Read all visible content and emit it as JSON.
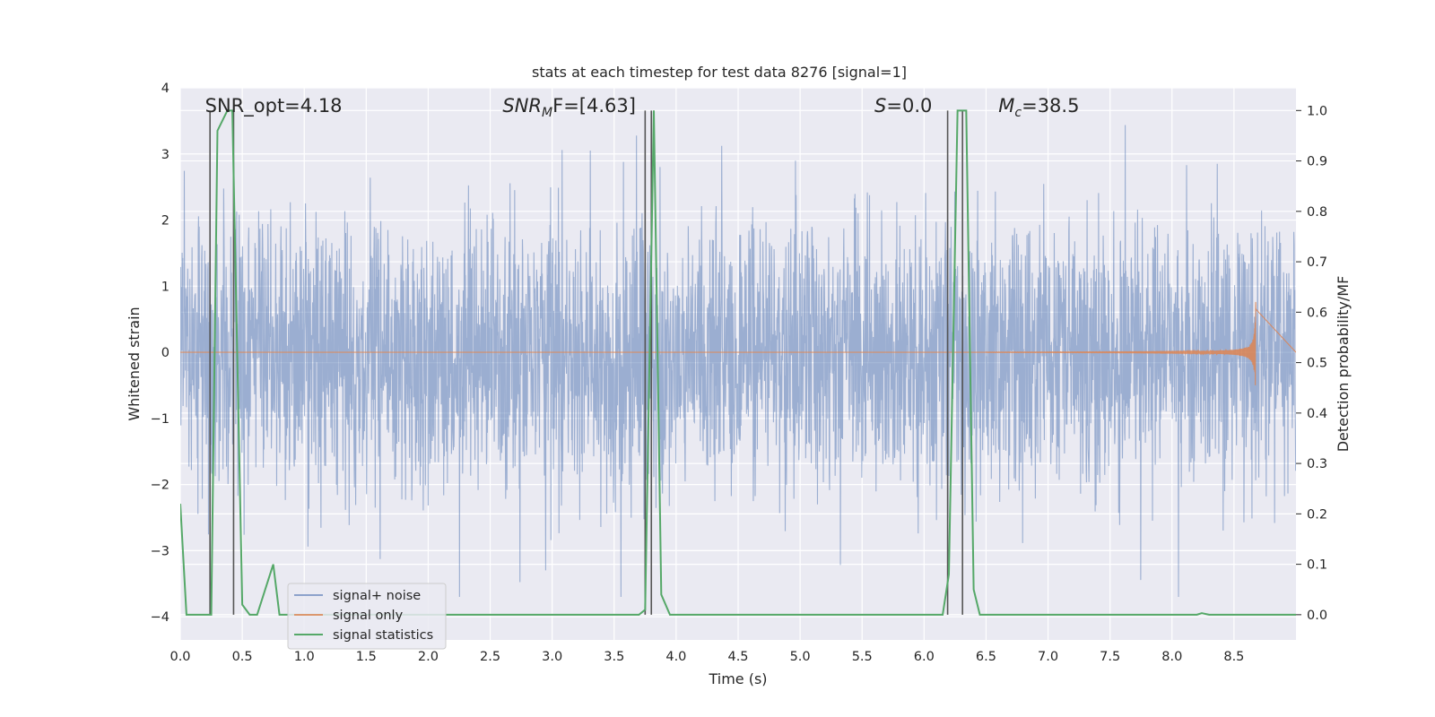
{
  "chart_data": {
    "type": "line",
    "title": "stats at each timestep for test data 8276 [signal=1]",
    "xlabel": "Time (s)",
    "ylabel": "Whitened strain",
    "y2label": "Detection probability/MF",
    "xlim": [
      0.0,
      9.0
    ],
    "ylim": [
      -4.35,
      4.0
    ],
    "y2lim": [
      -0.05,
      1.045
    ],
    "x_ticks": [
      "0.0",
      "0.5",
      "1.0",
      "1.5",
      "2.0",
      "2.5",
      "3.0",
      "3.5",
      "4.0",
      "4.5",
      "5.0",
      "5.5",
      "6.0",
      "6.5",
      "7.0",
      "7.5",
      "8.0",
      "8.5"
    ],
    "y_ticks": [
      "−4",
      "−3",
      "−2",
      "−1",
      "0",
      "1",
      "2",
      "3",
      "4"
    ],
    "y2_ticks": [
      "0.0",
      "0.1",
      "0.2",
      "0.3",
      "0.4",
      "0.5",
      "0.6",
      "0.7",
      "0.8",
      "0.9",
      "1.0"
    ],
    "grid": true,
    "legend_position": "lower-left",
    "annotations": [
      {
        "label": "SNR_opt=4.18",
        "x": 0.2
      },
      {
        "label": "SNR",
        "sub": "M",
        "rest": "F=[4.63]",
        "x": 2.6
      },
      {
        "label": "S",
        "rest": "=0.0",
        "x": 5.6
      },
      {
        "label": "M",
        "sub": "c",
        "rest": "=38.5",
        "x": 6.6
      }
    ],
    "colors": {
      "background": "#eaeaf2",
      "grid": "#ffffff",
      "noise": "#4c72b0",
      "signal": "#dd8452",
      "statistics": "#55a868",
      "vline": "#555555"
    },
    "series": [
      {
        "name": "signal+ noise",
        "axis": "left",
        "noise_envelope": {
          "typical_peak": 2.2,
          "max": 3.6,
          "min": -3.7,
          "t_start": 0.0,
          "t_end": 9.0
        }
      },
      {
        "name": "signal only",
        "axis": "left",
        "chirp": {
          "t_start": 6.5,
          "t_merger": 8.68,
          "peak_amplitude": 1.0
        }
      },
      {
        "name": "signal statistics",
        "axis": "right",
        "x": [
          0.0,
          0.05,
          0.25,
          0.3,
          0.38,
          0.42,
          0.5,
          0.56,
          0.62,
          0.75,
          0.8,
          3.7,
          3.75,
          3.82,
          3.88,
          3.95,
          4.1,
          6.15,
          6.2,
          6.27,
          6.34,
          6.4,
          6.45,
          8.2,
          8.24,
          8.3,
          9.0
        ],
        "y": [
          0.22,
          0.0,
          0.0,
          0.96,
          1.0,
          1.0,
          0.02,
          0.0,
          0.0,
          0.1,
          0.0,
          0.0,
          0.01,
          1.0,
          0.04,
          0.0,
          0.0,
          0.0,
          0.08,
          1.0,
          1.0,
          0.05,
          0.0,
          0.0,
          0.003,
          0.0,
          0.0
        ]
      }
    ],
    "vertical_lines": [
      0.24,
      0.43,
      3.75,
      3.8,
      6.19,
      6.31
    ]
  }
}
